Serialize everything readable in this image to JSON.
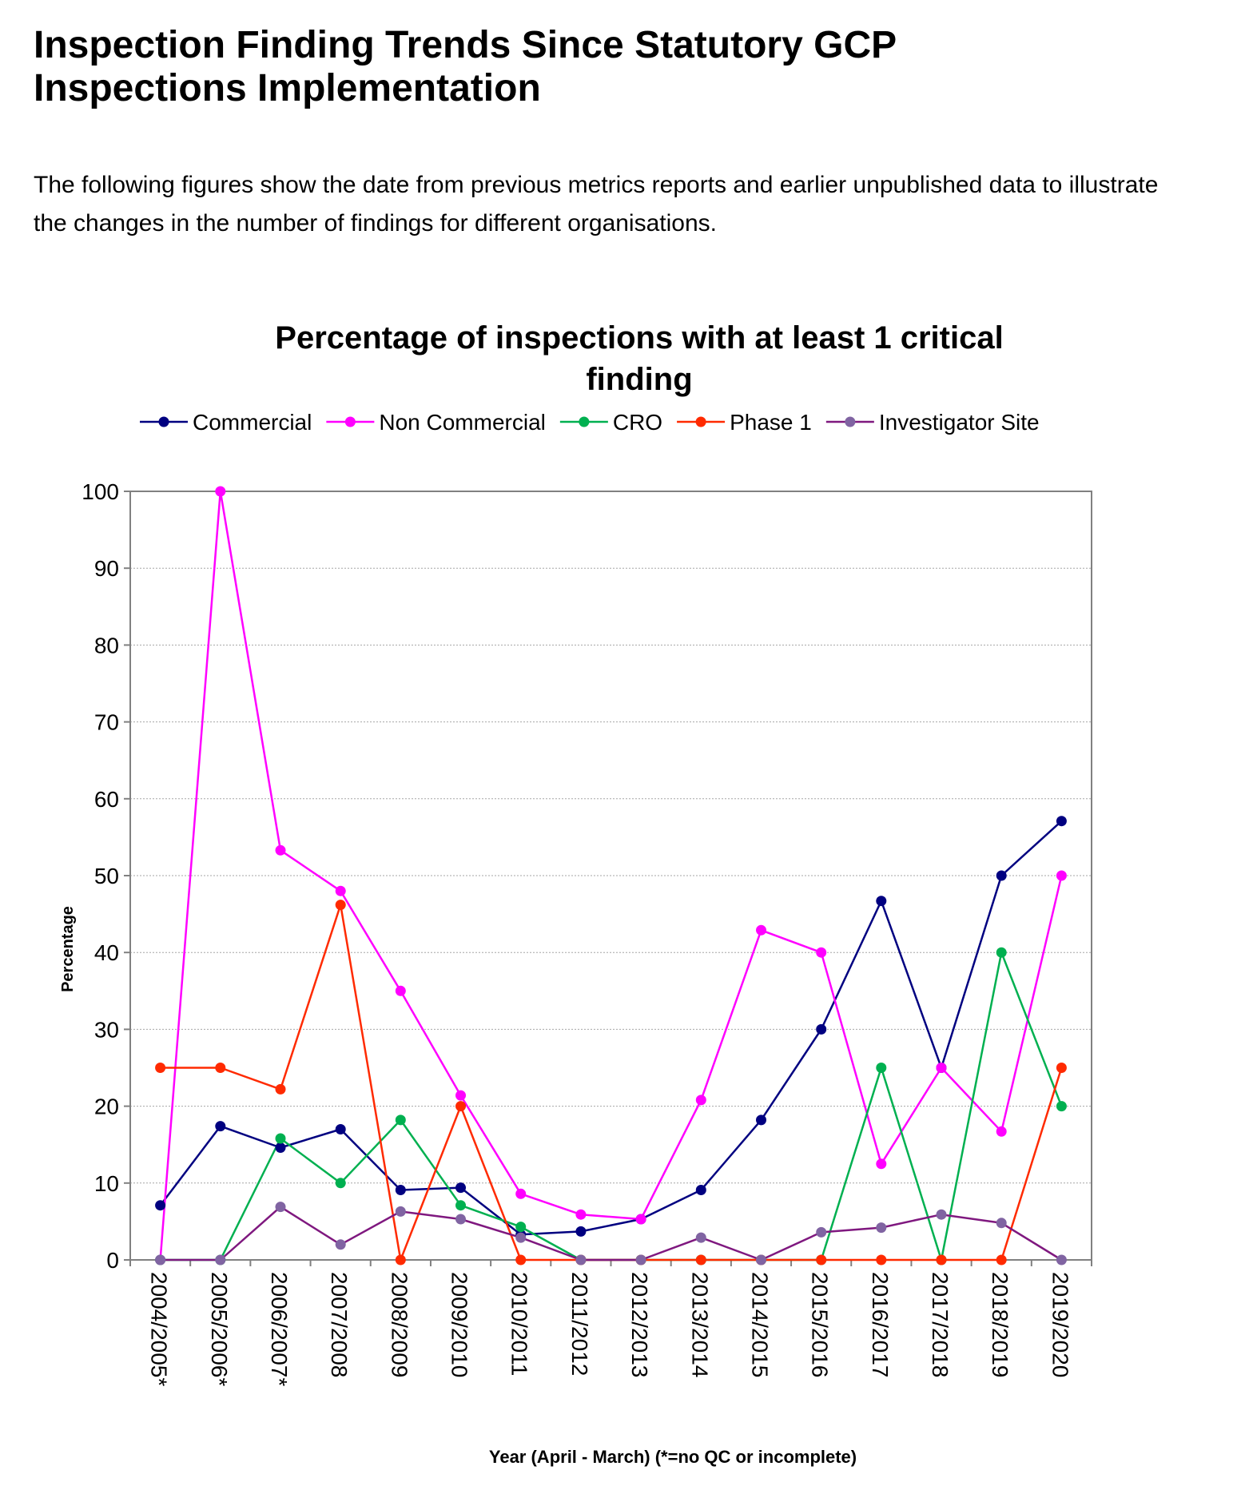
{
  "page": {
    "heading": "Inspection Finding Trends Since Statutory GCP Inspections Implementation",
    "intro": "The following figures show the date from previous metrics reports and earlier unpublished data to illustrate the changes in the number of findings for different organisations."
  },
  "chart_data": {
    "type": "line",
    "title_line1": "Percentage of inspections with at least 1 critical",
    "title_line2": "finding",
    "xlabel": "Year (April - March) (*=no QC or incomplete)",
    "ylabel": "Percentage",
    "ylim": [
      0,
      100
    ],
    "yticks": [
      0,
      10,
      20,
      30,
      40,
      50,
      60,
      70,
      80,
      90,
      100
    ],
    "grid": true,
    "legend_position": "top",
    "categories": [
      "2004/2005*",
      "2005/2006*",
      "2006/2007*",
      "2007/2008",
      "2008/2009",
      "2009/2010",
      "2010/2011",
      "2011/2012",
      "2012/2013",
      "2013/2014",
      "2014/2015",
      "2015/2016",
      "2016/2017",
      "2017/2018",
      "2018/2019",
      "2019/2020"
    ],
    "series": [
      {
        "name": "Commercial",
        "color": "#000080",
        "values": [
          7.1,
          17.4,
          14.6,
          17.0,
          9.1,
          9.4,
          3.3,
          3.7,
          5.3,
          9.1,
          18.2,
          30.0,
          46.7,
          25.0,
          50.0,
          57.1
        ]
      },
      {
        "name": "Non Commercial",
        "color": "#ff00ff",
        "values": [
          0,
          100,
          53.3,
          48.0,
          35.0,
          21.4,
          8.6,
          5.9,
          5.3,
          20.8,
          42.9,
          40.0,
          12.5,
          25.0,
          16.7,
          50.0
        ]
      },
      {
        "name": "CRO",
        "color": "#00b050",
        "values": [
          0,
          0,
          15.8,
          10.0,
          18.2,
          7.1,
          4.3,
          0,
          0,
          0,
          0,
          0,
          25.0,
          0,
          40.0,
          20.0
        ]
      },
      {
        "name": "Phase 1",
        "color": "#ff2a00",
        "values": [
          25.0,
          25.0,
          22.2,
          46.2,
          0,
          20.0,
          0,
          0,
          0,
          0,
          0,
          0,
          0,
          0,
          0,
          25.0
        ]
      },
      {
        "name": "Investigator Site",
        "color": "#7f187f",
        "values": [
          0,
          0,
          6.9,
          2.0,
          6.3,
          5.3,
          2.9,
          0,
          0,
          2.9,
          0,
          3.6,
          4.2,
          5.9,
          4.8,
          0
        ]
      }
    ],
    "marker_colors": {
      "Investigator Site": "#8064a2"
    }
  }
}
